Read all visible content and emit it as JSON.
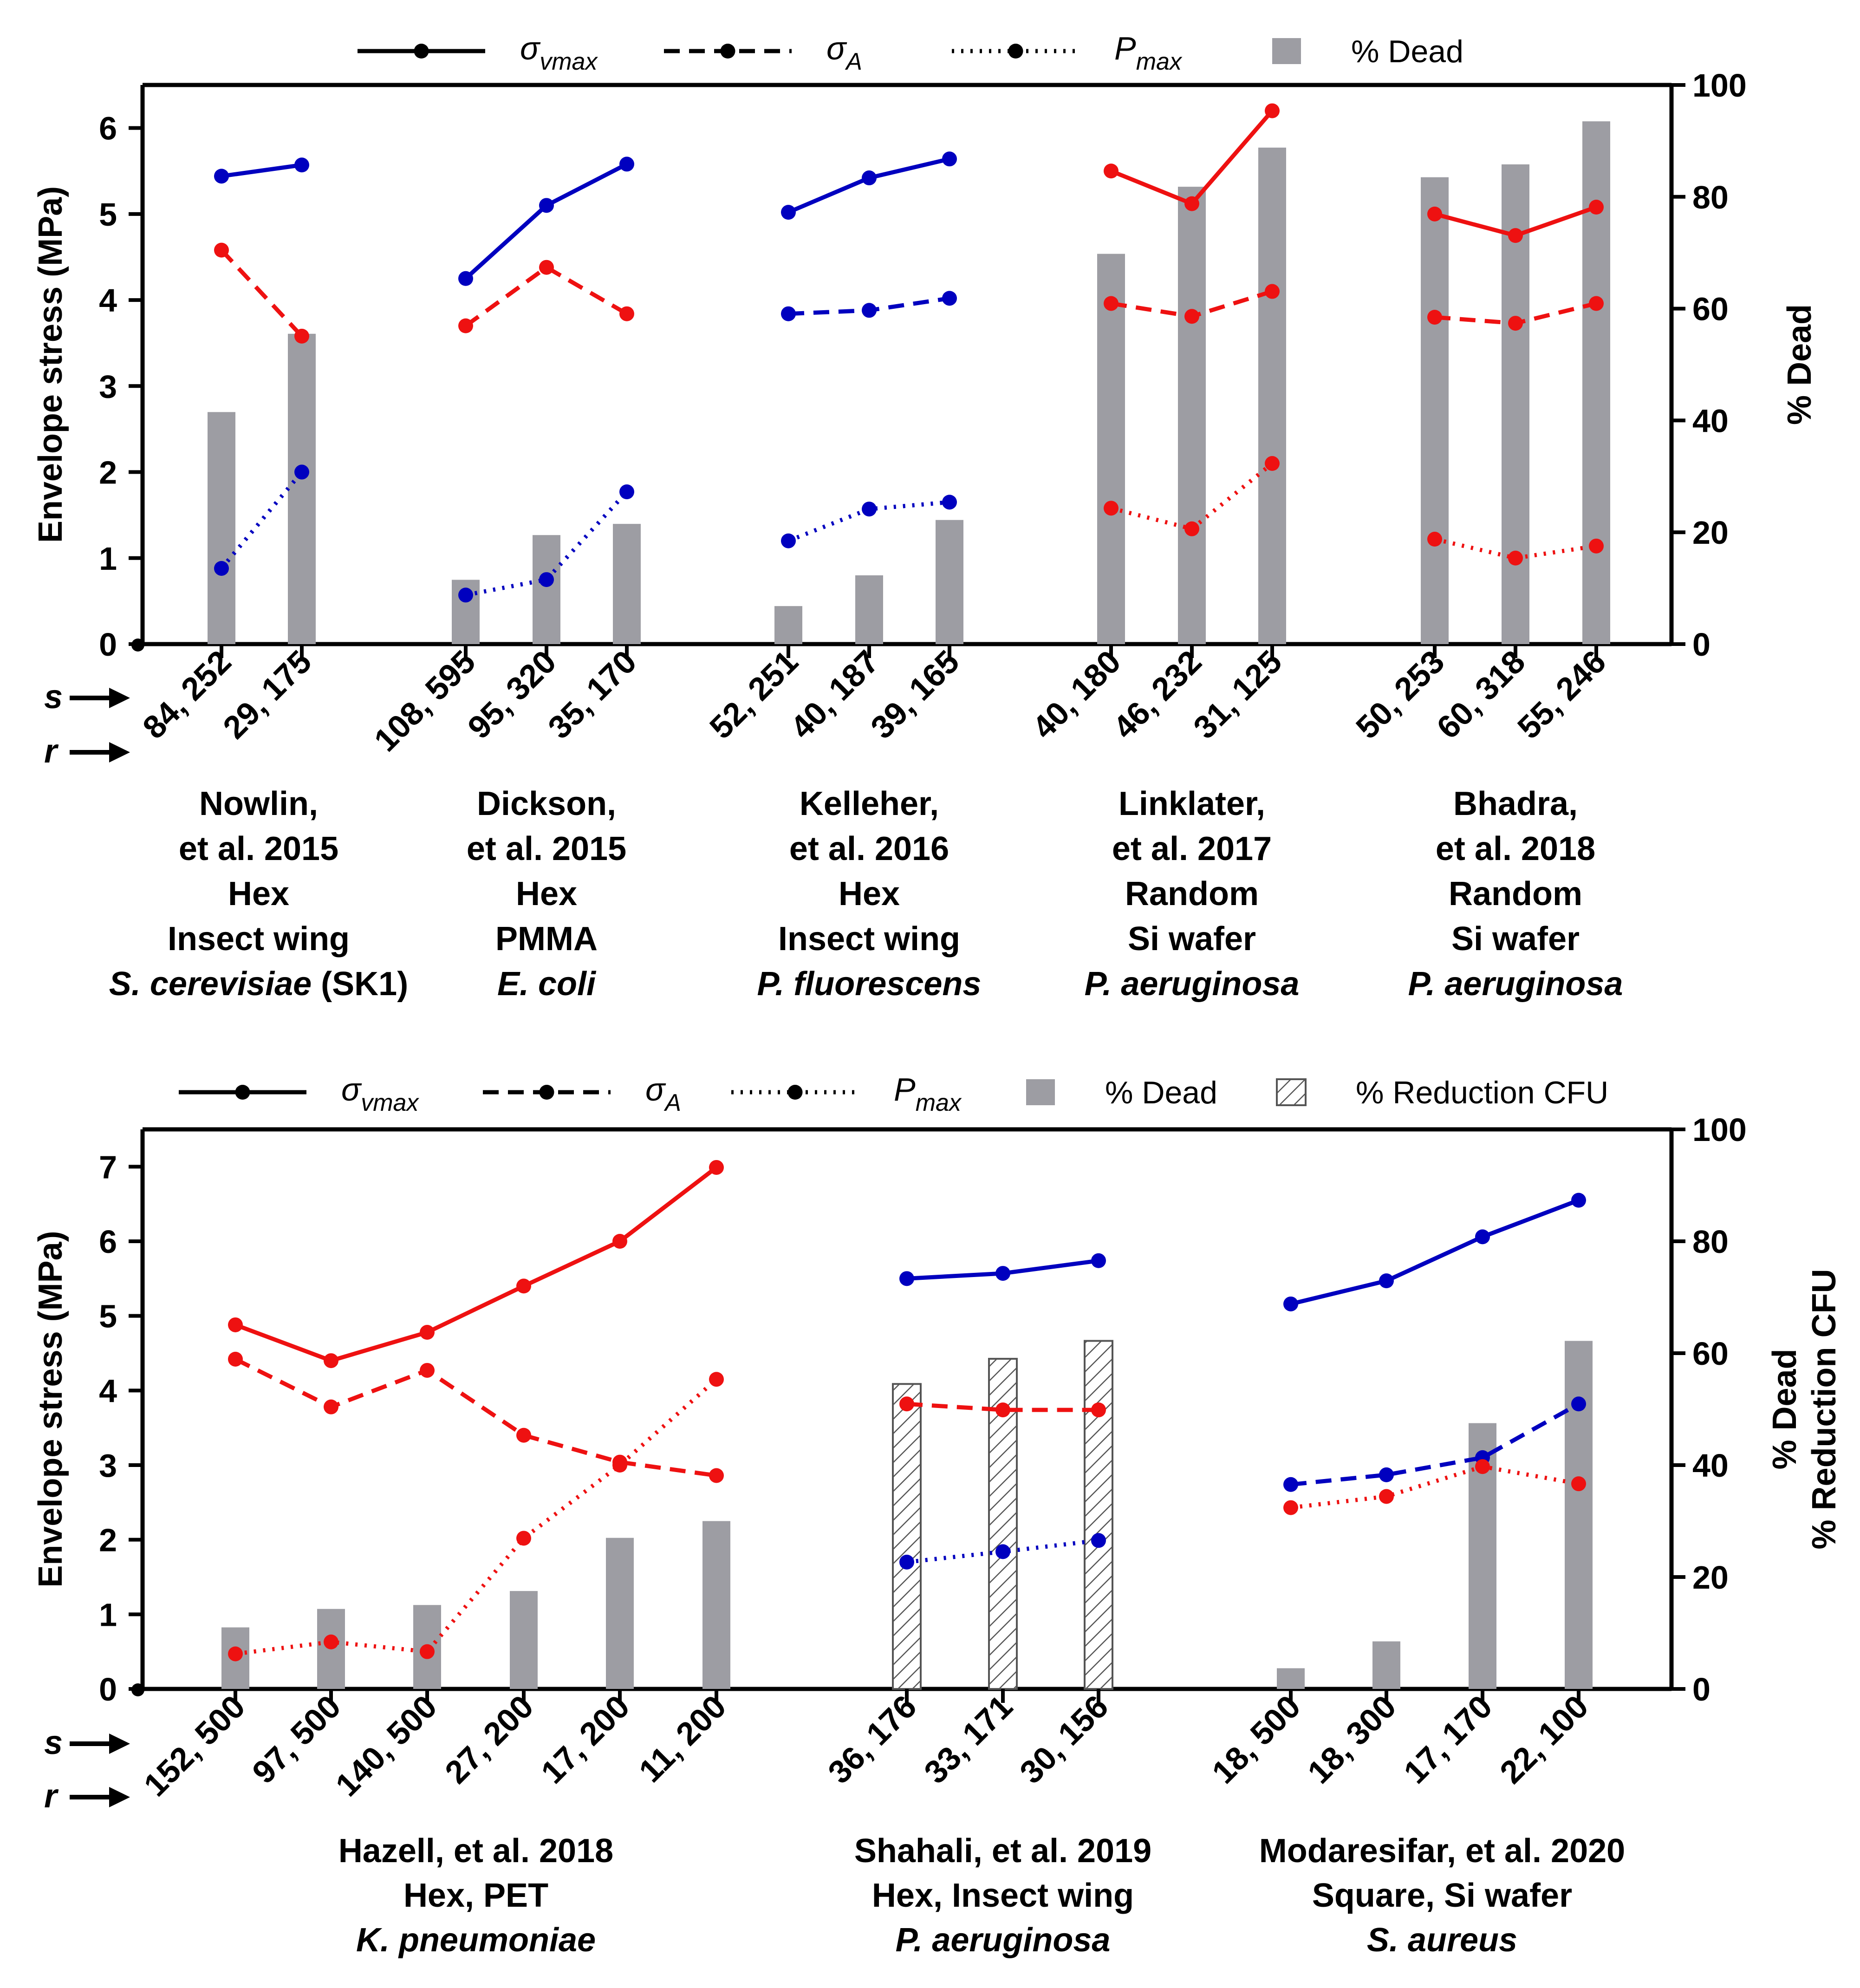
{
  "colors": {
    "blue": "#0000bf",
    "red": "#ee1111",
    "bar": "#9d9da3",
    "axis": "#000000"
  },
  "chart_data": [
    {
      "type": "line+bar",
      "ylabel": "Envelope stress (MPa)",
      "y2label_lines": [
        "% Dead"
      ],
      "ylim": [
        0,
        6.5
      ],
      "y2lim": [
        0,
        100
      ],
      "yticks": [
        "0",
        "1",
        "2",
        "3",
        "4",
        "5",
        "6"
      ],
      "y2ticks": [
        "0",
        "20",
        "40",
        "60",
        "80",
        "100"
      ],
      "s_label": "s",
      "r_label": "r",
      "legend": [
        {
          "style": "solid",
          "main": "σ",
          "sub": "vmax"
        },
        {
          "style": "dashed",
          "main": "σ",
          "sub": "A"
        },
        {
          "style": "dotted",
          "main": "P",
          "sub": "max"
        },
        {
          "style": "bar",
          "main": "% Dead",
          "sub": ""
        }
      ],
      "groups": [
        {
          "color": "blue",
          "categories": [
            "84, 252",
            "29, 175"
          ],
          "sigma_vmax": [
            5.44,
            5.57
          ],
          "sigma_A": [
            4.58,
            3.58
          ],
          "sigma_A_color": "red",
          "P_max": [
            0.88,
            2.0
          ],
          "P_max_color": "blue",
          "dead": [
            41.5,
            55.5
          ],
          "dead_style": "solid",
          "caption": [
            {
              "text": "Nowlin,"
            },
            {
              "text": "et al. 2015"
            },
            {
              "text": "Hex"
            },
            {
              "text": "Insect wing"
            },
            {
              "text": "S. cerevisiae",
              "italic": true,
              "suffix": " (SK1)"
            }
          ]
        },
        {
          "color": "blue",
          "categories": [
            "108, 595",
            "95, 320",
            "35, 170"
          ],
          "sigma_vmax": [
            4.25,
            5.1,
            5.58
          ],
          "sigma_A": [
            3.7,
            4.38,
            3.84
          ],
          "sigma_A_color": "red",
          "P_max": [
            0.57,
            0.75,
            1.77
          ],
          "P_max_color": "blue",
          "dead": [
            11.5,
            19.5,
            21.5
          ],
          "dead_style": "solid",
          "caption": [
            {
              "text": "Dickson,"
            },
            {
              "text": "et al. 2015"
            },
            {
              "text": "Hex"
            },
            {
              "text": "PMMA"
            },
            {
              "text": "E. coli",
              "italic": true
            }
          ]
        },
        {
          "color": "blue",
          "categories": [
            "52, 251",
            "40, 187",
            "39, 165"
          ],
          "sigma_vmax": [
            5.02,
            5.42,
            5.64
          ],
          "sigma_A": [
            3.84,
            3.88,
            4.02
          ],
          "sigma_A_color": "blue",
          "P_max": [
            1.2,
            1.57,
            1.65
          ],
          "P_max_color": "blue",
          "dead": [
            6.8,
            12.3,
            22.2
          ],
          "dead_style": "solid",
          "caption": [
            {
              "text": "Kelleher,"
            },
            {
              "text": "et al. 2016"
            },
            {
              "text": "Hex"
            },
            {
              "text": "Insect wing"
            },
            {
              "text": "P. fluorescens",
              "italic": true
            }
          ]
        },
        {
          "color": "red",
          "categories": [
            "40, 180",
            "46, 232",
            "31, 125"
          ],
          "sigma_vmax": [
            5.5,
            5.12,
            6.2
          ],
          "sigma_A": [
            3.96,
            3.81,
            4.1
          ],
          "sigma_A_color": "red",
          "P_max": [
            1.58,
            1.34,
            2.1
          ],
          "P_max_color": "red",
          "dead": [
            69.8,
            81.8,
            88.8
          ],
          "dead_style": "solid",
          "caption": [
            {
              "text": "Linklater,"
            },
            {
              "text": "et al. 2017"
            },
            {
              "text": "Random"
            },
            {
              "text": "Si wafer"
            },
            {
              "text": "P. aeruginosa",
              "italic": true
            }
          ]
        },
        {
          "color": "red",
          "categories": [
            "50, 253",
            "60, 318",
            "55, 246"
          ],
          "sigma_vmax": [
            5.0,
            4.75,
            5.08
          ],
          "sigma_A": [
            3.8,
            3.73,
            3.96
          ],
          "sigma_A_color": "red",
          "P_max": [
            1.22,
            1.0,
            1.14
          ],
          "P_max_color": "red",
          "dead": [
            83.5,
            85.8,
            93.5
          ],
          "dead_style": "solid",
          "caption": [
            {
              "text": "Bhadra,"
            },
            {
              "text": "et al. 2018"
            },
            {
              "text": "Random"
            },
            {
              "text": "Si wafer"
            },
            {
              "text": "P. aeruginosa",
              "italic": true
            }
          ]
        }
      ]
    },
    {
      "type": "line+bar",
      "ylabel": "Envelope stress (MPa)",
      "y2label_lines": [
        "% Dead",
        "% Reduction CFU"
      ],
      "ylim": [
        0,
        7.5
      ],
      "y2lim": [
        0,
        100
      ],
      "yticks": [
        "0",
        "1",
        "2",
        "3",
        "4",
        "5",
        "6",
        "7"
      ],
      "y2ticks": [
        "0",
        "20",
        "40",
        "60",
        "80",
        "100"
      ],
      "s_label": "s",
      "r_label": "r",
      "legend": [
        {
          "style": "solid",
          "main": "σ",
          "sub": "vmax"
        },
        {
          "style": "dashed",
          "main": "σ",
          "sub": "A"
        },
        {
          "style": "dotted",
          "main": "P",
          "sub": "max"
        },
        {
          "style": "bar",
          "main": "% Dead",
          "sub": ""
        },
        {
          "style": "hatch",
          "main": "% Reduction CFU",
          "sub": ""
        }
      ],
      "groups": [
        {
          "color": "red",
          "categories": [
            "152, 500",
            "97, 500",
            "140, 500",
            "27, 200",
            "17, 200",
            "11, 200"
          ],
          "sigma_vmax": [
            4.88,
            4.4,
            4.78,
            5.4,
            6.0,
            6.99
          ],
          "sigma_A": [
            4.42,
            3.78,
            4.27,
            3.4,
            3.04,
            2.86
          ],
          "sigma_A_color": "red",
          "P_max": [
            0.47,
            0.63,
            0.5,
            2.02,
            3.0,
            4.15
          ],
          "P_max_color": "red",
          "dead": [
            11,
            14.3,
            15,
            17.5,
            27,
            30
          ],
          "dead_style": "solid",
          "caption": [
            {
              "text": "Hazell, et al. 2018"
            },
            {
              "text": "Hex, PET"
            },
            {
              "text": "K. pneumoniae",
              "italic": true
            }
          ]
        },
        {
          "color": "blue",
          "categories": [
            "36, 176",
            "33, 171",
            "30, 156"
          ],
          "sigma_vmax": [
            5.5,
            5.57,
            5.74
          ],
          "sigma_A": [
            3.82,
            3.74,
            3.74
          ],
          "sigma_A_color": "red",
          "P_max": [
            1.7,
            1.84,
            1.99
          ],
          "P_max_color": "blue",
          "dead": [
            54.5,
            59,
            62.2
          ],
          "dead_style": "hatch",
          "caption": [
            {
              "text": "Shahali, et al. 2019"
            },
            {
              "text": "Hex, Insect wing"
            },
            {
              "text": "P. aeruginosa",
              "italic": true
            }
          ]
        },
        {
          "color": "blue",
          "categories": [
            "18, 500",
            "18, 300",
            "17, 170",
            "22, 100"
          ],
          "sigma_vmax": [
            5.16,
            5.47,
            6.06,
            6.55
          ],
          "sigma_A": [
            2.74,
            2.87,
            3.1,
            3.82
          ],
          "sigma_A_color": "blue",
          "P_max": [
            2.43,
            2.58,
            2.98,
            2.75
          ],
          "P_max_color": "red",
          "dead": [
            3.7,
            8.5,
            47.5,
            62.2
          ],
          "dead_style": "solid",
          "caption": [
            {
              "text": "Modaresifar, et al. 2020"
            },
            {
              "text": "Square, Si wafer"
            },
            {
              "text": "S. aureus",
              "italic": true
            }
          ]
        }
      ]
    }
  ]
}
